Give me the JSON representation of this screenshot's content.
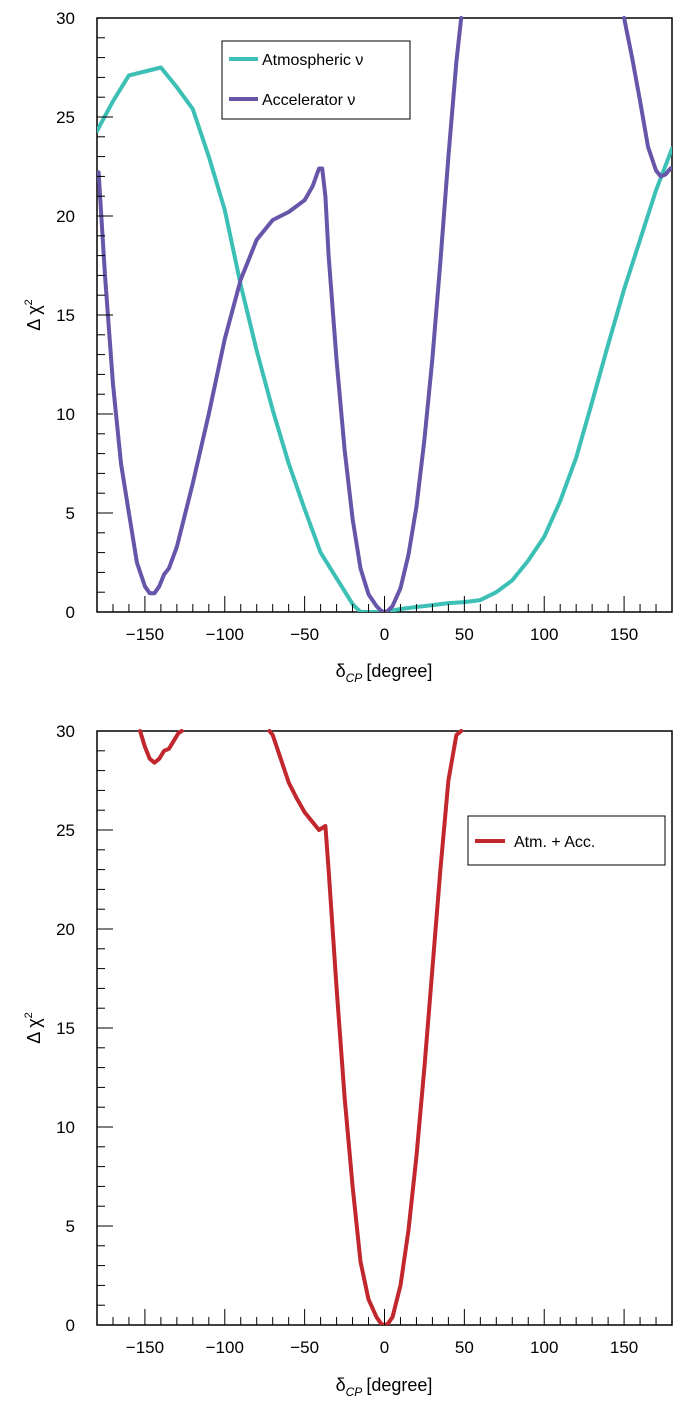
{
  "chart_data": [
    {
      "type": "line",
      "xlabel": {
        "main": "δ",
        "sub": "CP",
        "unit": "[degree]"
      },
      "ylabel": {
        "main": "Δ χ",
        "sup": "2"
      },
      "xlim": [
        -180,
        180
      ],
      "ylim": [
        0,
        30
      ],
      "x_ticks": [
        -150,
        -100,
        -50,
        0,
        50,
        100,
        150
      ],
      "x_tick_labels": [
        "−150",
        "−100",
        "−50",
        "0",
        "50",
        "100",
        "150"
      ],
      "y_ticks": [
        0,
        5,
        10,
        15,
        20,
        25,
        30
      ],
      "y_tick_labels": [
        "0",
        "5",
        "10",
        "15",
        "20",
        "25",
        "30"
      ],
      "grid": false,
      "legend_position": "top-center",
      "series": [
        {
          "name": "Atmospheric ν",
          "color": "#3cc0b6",
          "x": [
            -180,
            -170,
            -160,
            -150,
            -140,
            -130,
            -120,
            -110,
            -100,
            -90,
            -80,
            -70,
            -60,
            -50,
            -40,
            -30,
            -20,
            -15,
            -10,
            0,
            10,
            20,
            30,
            40,
            50,
            60,
            70,
            80,
            90,
            100,
            110,
            120,
            130,
            140,
            150,
            160,
            170,
            180
          ],
          "y": [
            24.3,
            25.8,
            27.1,
            27.3,
            27.5,
            26.5,
            25.4,
            23.0,
            20.3,
            16.5,
            13.2,
            10.2,
            7.5,
            5.2,
            3.0,
            1.7,
            0.4,
            0.0,
            0.0,
            0.0,
            0.15,
            0.25,
            0.35,
            0.45,
            0.5,
            0.6,
            1.0,
            1.6,
            2.6,
            3.8,
            5.6,
            7.8,
            10.6,
            13.5,
            16.3,
            18.8,
            21.3,
            23.4
          ]
        },
        {
          "name": "Accelerator ν",
          "color": "#6655a8",
          "x": [
            -179,
            -175,
            -170,
            -165,
            -160,
            -155,
            -150,
            -147,
            -144,
            -141,
            -138,
            -135,
            -130,
            -120,
            -110,
            -100,
            -90,
            -80,
            -70,
            -60,
            -50,
            -45,
            -41,
            -39,
            -37,
            -35,
            -30,
            -25,
            -20,
            -15,
            -10,
            -5,
            -2,
            0,
            2,
            5,
            10,
            15,
            20,
            25,
            30,
            35,
            40,
            45,
            48,
            150,
            155,
            160,
            165,
            170,
            173,
            176,
            179
          ],
          "y": [
            22.2,
            17.0,
            11.5,
            7.5,
            5.0,
            2.5,
            1.3,
            0.95,
            0.95,
            1.3,
            1.9,
            2.2,
            3.3,
            6.5,
            10.0,
            13.8,
            16.8,
            18.8,
            19.8,
            20.2,
            20.8,
            21.5,
            22.4,
            22.4,
            21.0,
            18.0,
            12.7,
            8.2,
            4.7,
            2.2,
            0.9,
            0.3,
            0.05,
            0.0,
            0.05,
            0.3,
            1.2,
            2.9,
            5.3,
            8.7,
            12.8,
            17.7,
            23.0,
            27.8,
            30.0,
            30.0,
            28.0,
            25.8,
            23.5,
            22.3,
            22.0,
            22.1,
            22.4
          ]
        }
      ]
    },
    {
      "type": "line",
      "xlabel": {
        "main": "δ",
        "sub": "CP",
        "unit": "[degree]"
      },
      "ylabel": {
        "main": "Δ χ",
        "sup": "2"
      },
      "xlim": [
        -180,
        180
      ],
      "ylim": [
        0,
        30
      ],
      "x_ticks": [
        -150,
        -100,
        -50,
        0,
        50,
        100,
        150
      ],
      "x_tick_labels": [
        "−150",
        "−100",
        "−50",
        "0",
        "50",
        "100",
        "150"
      ],
      "y_ticks": [
        0,
        5,
        10,
        15,
        20,
        25,
        30
      ],
      "y_tick_labels": [
        "0",
        "5",
        "10",
        "15",
        "20",
        "25",
        "30"
      ],
      "grid": false,
      "legend_position": "top-right",
      "series": [
        {
          "name": "Atm. + Acc.",
          "color": "#c1272d",
          "x": [
            -153,
            -150,
            -147,
            -144,
            -141,
            -138,
            -135,
            -132,
            -129,
            -127
          ],
          "y": [
            30.0,
            29.2,
            28.6,
            28.4,
            28.6,
            29.0,
            29.1,
            29.5,
            29.9,
            30.0
          ]
        },
        {
          "name": "",
          "color": "#c1272d",
          "x": [
            -72,
            -70,
            -65,
            -60,
            -55,
            -50,
            -45,
            -41,
            -39,
            -37,
            -35,
            -30,
            -25,
            -20,
            -15,
            -10,
            -5,
            -2,
            0,
            2,
            5,
            10,
            15,
            20,
            25,
            30,
            35,
            40,
            45,
            48
          ],
          "y": [
            30.0,
            29.8,
            28.6,
            27.4,
            26.6,
            25.9,
            25.4,
            25.0,
            25.1,
            25.2,
            23.0,
            17.0,
            11.5,
            7.0,
            3.2,
            1.3,
            0.4,
            0.05,
            0.0,
            0.05,
            0.4,
            2.0,
            4.8,
            8.5,
            13.0,
            18.0,
            23.0,
            27.5,
            29.8,
            30.0
          ]
        }
      ]
    }
  ]
}
